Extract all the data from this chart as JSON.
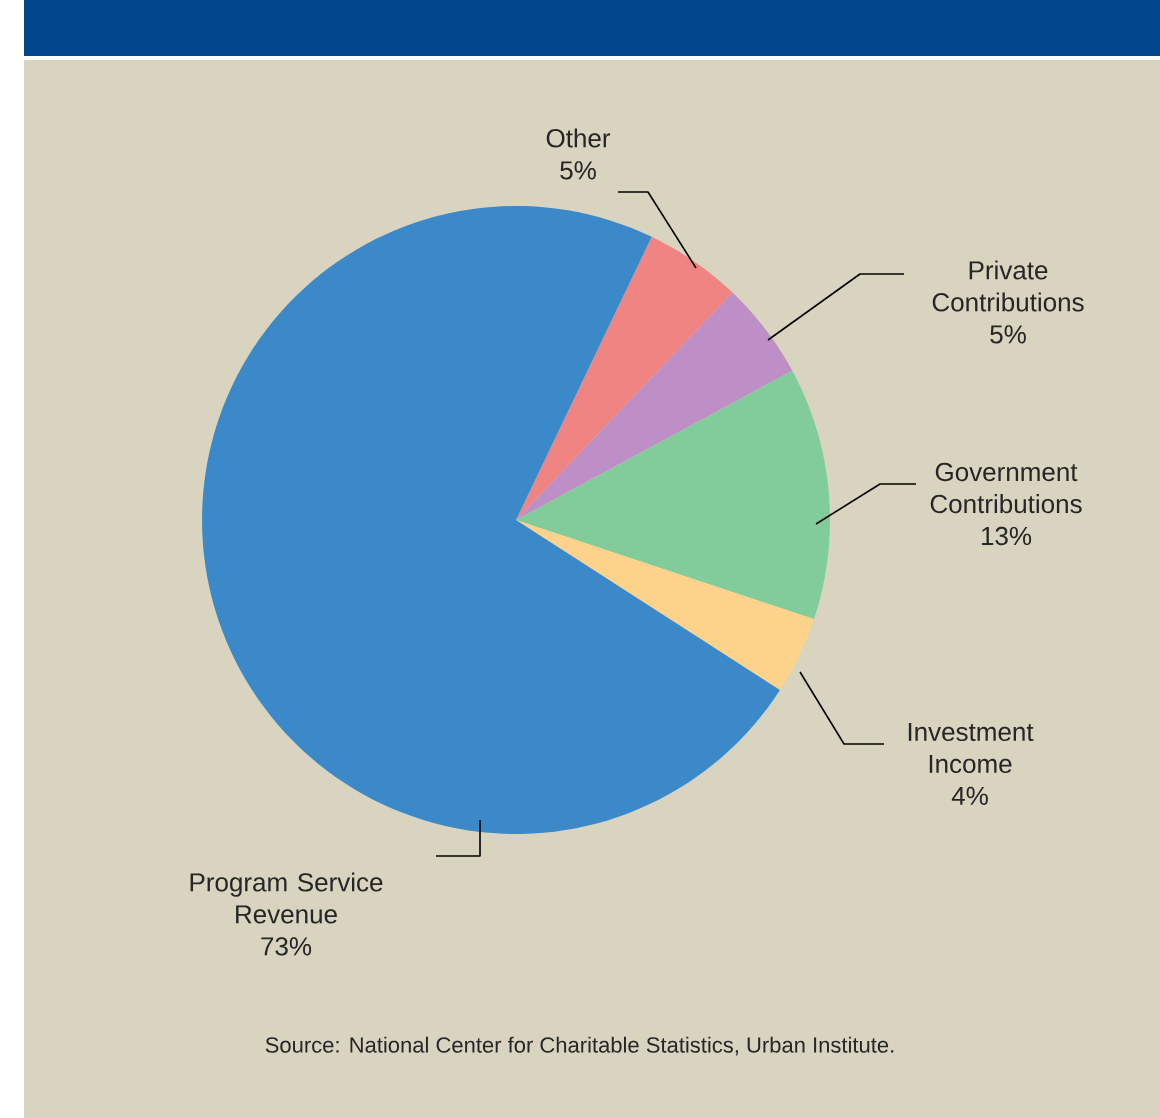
{
  "chart_data": {
    "type": "pie",
    "categories": [
      "Other",
      "Private Contributions",
      "Government Contributions",
      "Investment Income",
      "Program Service Revenue"
    ],
    "values": [
      5,
      5,
      13,
      4,
      73
    ],
    "colors": [
      "#f08482",
      "#be8fc6",
      "#82cc9b",
      "#fdd38c",
      "#3c89c9"
    ],
    "value_labels": [
      "5%",
      "5%",
      "13%",
      "4%",
      "73%"
    ],
    "annotations": [
      "Source: National Center for Charitable Statistics, Urban Institute."
    ]
  }
}
